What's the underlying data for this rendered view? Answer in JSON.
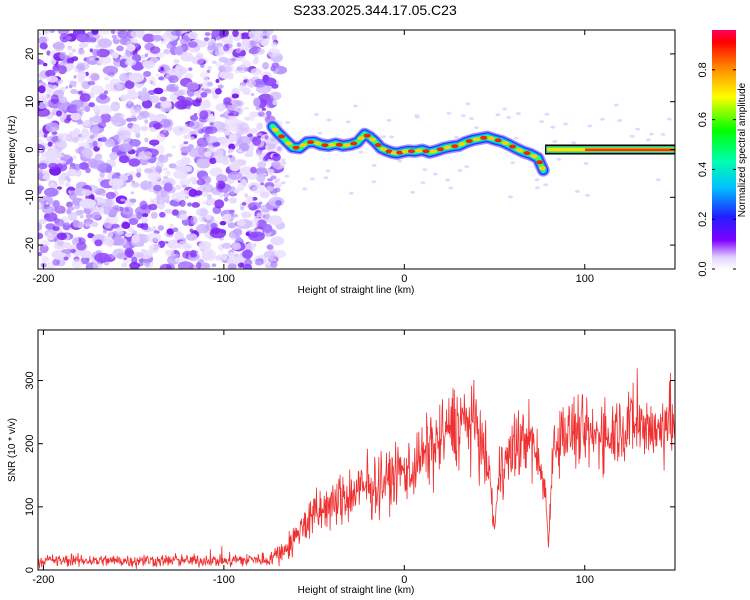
{
  "title": "S233.2025.344.17.05.C23",
  "chart_data": [
    {
      "type": "heatmap",
      "xlabel": "Height of straight line (km)",
      "ylabel": "Frequency (Hz)",
      "xlim": [
        -203,
        150
      ],
      "ylim": [
        -25,
        25
      ],
      "xticks": [
        -200,
        -100,
        0,
        100
      ],
      "yticks": [
        -20,
        -10,
        0,
        10,
        20
      ],
      "noise_region_x": [
        -203,
        -72
      ],
      "signal_track": {
        "x": [
          -73,
          -70,
          -66,
          -62,
          -58,
          -54,
          -50,
          -46,
          -42,
          -38,
          -34,
          -30,
          -26,
          -22,
          -19,
          -16,
          -13,
          -10,
          -7,
          -4,
          -1,
          2,
          6,
          10,
          14,
          18,
          22,
          26,
          30,
          34,
          38,
          42,
          46,
          50,
          54,
          58,
          62,
          66,
          70,
          74,
          76,
          77
        ],
        "y": [
          4.8,
          3.5,
          2.0,
          0.5,
          0.3,
          1.5,
          1.6,
          1.0,
          0.8,
          1.2,
          0.8,
          1.0,
          1.5,
          3.2,
          2.6,
          1.6,
          0.3,
          -0.2,
          -0.6,
          -0.8,
          -0.5,
          -0.3,
          -0.4,
          -0.1,
          -0.6,
          -0.2,
          0.3,
          0.6,
          0.8,
          1.5,
          2.0,
          2.3,
          2.6,
          2.1,
          1.7,
          1.0,
          0.2,
          -0.5,
          -1.0,
          -1.8,
          -3.5,
          -4.3
        ]
      },
      "tone": {
        "x": [
          78,
          150
        ],
        "y": 0.0
      },
      "colorbar": {
        "label": "Normalized spectral amplitude",
        "ticks": [
          "0.0",
          "0.2",
          "0.4",
          "0.6",
          "0.8"
        ],
        "range": [
          0,
          0.96
        ]
      }
    },
    {
      "type": "line",
      "xlabel": "Height of straight line (km)",
      "ylabel": "SNR (10 * v/v)",
      "xlim": [
        -203,
        150
      ],
      "ylim": [
        0,
        380
      ],
      "xticks": [
        -200,
        -100,
        0,
        100
      ],
      "yticks": [
        0,
        100,
        200,
        300
      ],
      "color": "#f03030",
      "envelope": {
        "x": [
          -203,
          -150,
          -100,
          -75,
          -63,
          -55,
          -45,
          -35,
          -25,
          -15,
          -5,
          5,
          15,
          25,
          32,
          40,
          45,
          48,
          50,
          53,
          60,
          70,
          78,
          80,
          82,
          86,
          95,
          105,
          115,
          125,
          135,
          140,
          145,
          150
        ],
        "mean": [
          15,
          15,
          15,
          17,
          40,
          75,
          95,
          110,
          125,
          135,
          150,
          165,
          195,
          225,
          240,
          225,
          185,
          130,
          60,
          160,
          190,
          215,
          130,
          40,
          190,
          215,
          220,
          210,
          220,
          235,
          230,
          215,
          240,
          225
        ],
        "spread": [
          12,
          12,
          12,
          14,
          28,
          40,
          45,
          50,
          55,
          55,
          60,
          65,
          70,
          75,
          80,
          70,
          55,
          40,
          20,
          55,
          65,
          70,
          40,
          15,
          55,
          65,
          70,
          65,
          70,
          75,
          70,
          60,
          80,
          70
        ]
      }
    }
  ]
}
